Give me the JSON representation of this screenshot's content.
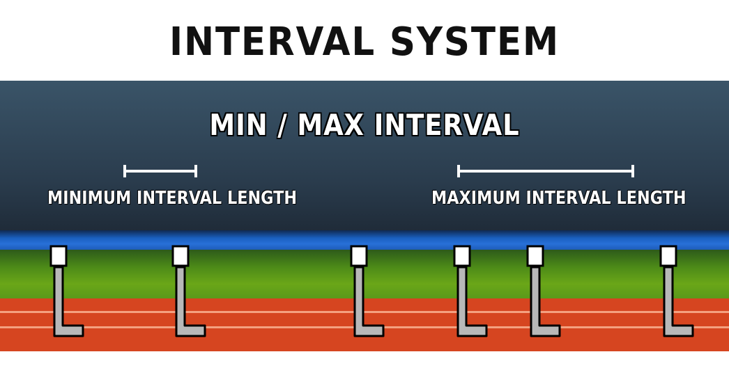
{
  "title": "INTERVAL SYSTEM",
  "subtitle": "MIN / MAX INTERVAL",
  "labels": {
    "minimum": "MINIMUM INTERVAL LENGTH",
    "maximum": "MAXIMUM INTERVAL LENGTH"
  },
  "colors": {
    "sky_top": "#3a5468",
    "sky_bottom": "#0d1118",
    "water_blue": "#2870d8",
    "grass_green": "#6aa618",
    "track_red": "#d64520",
    "hurdle_gray": "#b8b8b8"
  },
  "hurdles": [
    {
      "name": "hurdle-1"
    },
    {
      "name": "hurdle-2"
    },
    {
      "name": "hurdle-3"
    },
    {
      "name": "hurdle-4"
    },
    {
      "name": "hurdle-5"
    },
    {
      "name": "hurdle-6"
    }
  ]
}
